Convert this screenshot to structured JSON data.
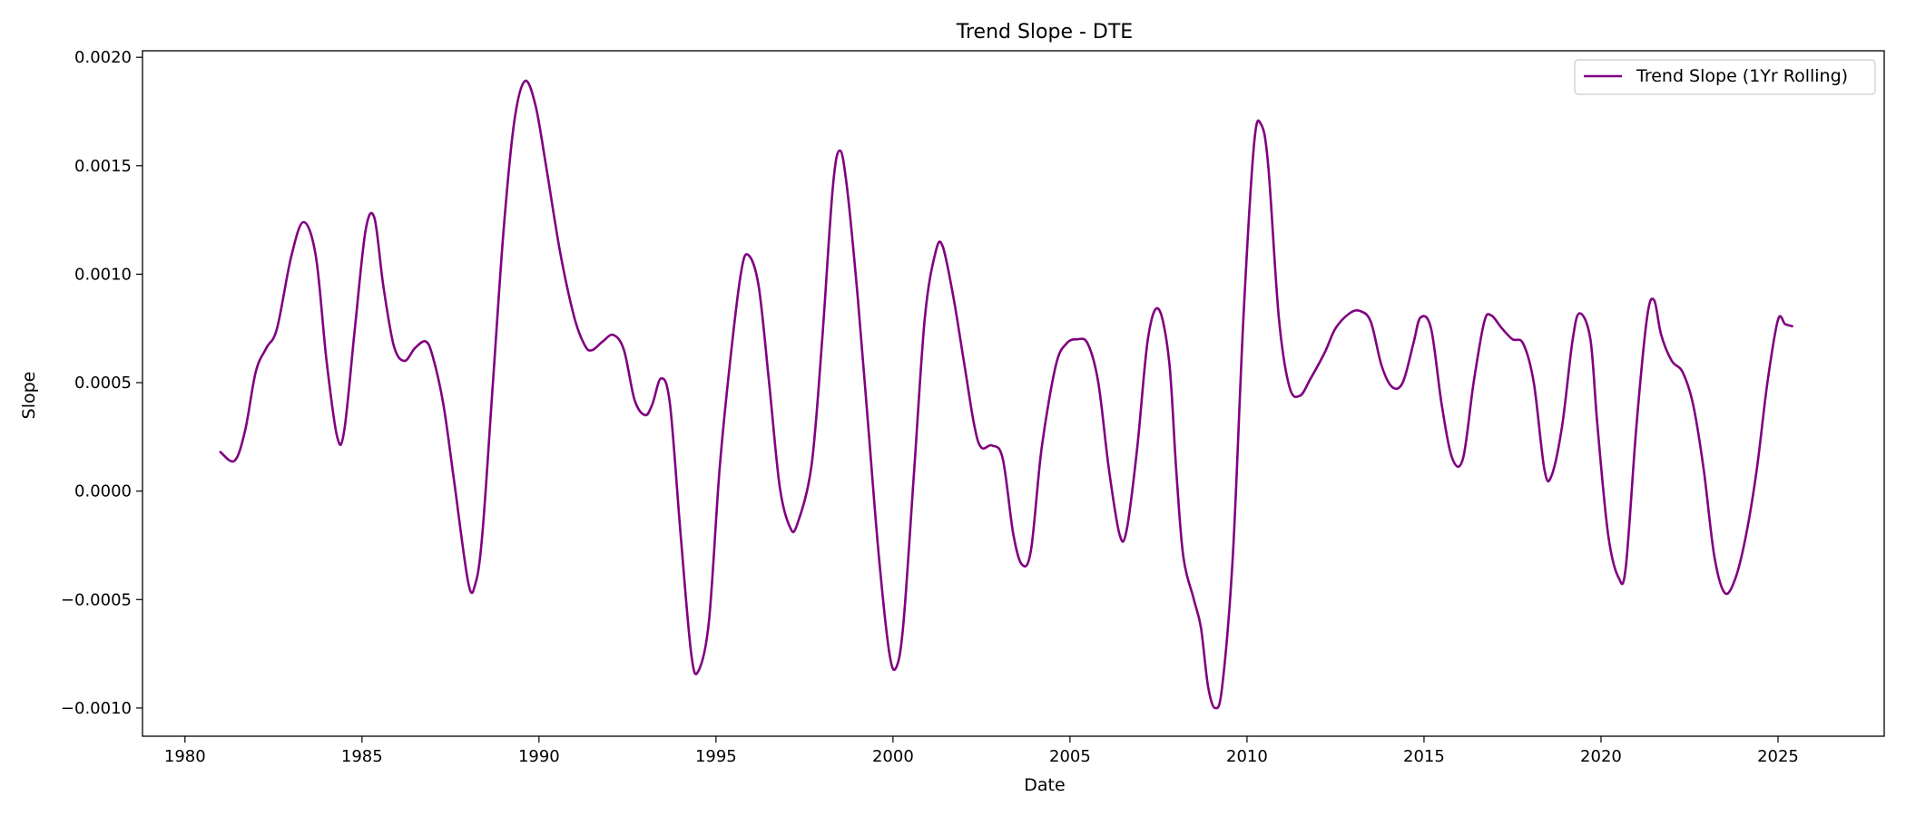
{
  "chart_data": {
    "type": "line",
    "title": "Trend Slope - DTE",
    "xlabel": "Date",
    "ylabel": "Slope",
    "xlim": [
      1978.8,
      2028.0
    ],
    "ylim": [
      -0.00113,
      0.00203
    ],
    "xticks": [
      1980,
      1985,
      1990,
      1995,
      2000,
      2005,
      2010,
      2015,
      2020,
      2025
    ],
    "yticks": [
      -0.001,
      -0.0005,
      0.0,
      0.0005,
      0.001,
      0.0015,
      0.002
    ],
    "ytick_labels": [
      "−0.0010",
      "−0.0005",
      "0.0000",
      "0.0005",
      "0.0010",
      "0.0015",
      "0.0020"
    ],
    "grid": false,
    "legend_position": "top-right",
    "series": [
      {
        "name": "Trend Slope (1Yr Rolling)",
        "color": "#800080",
        "points": [
          [
            1981.0,
            0.00018
          ],
          [
            1981.4,
            0.00014
          ],
          [
            1981.7,
            0.00028
          ],
          [
            1982.0,
            0.00055
          ],
          [
            1982.3,
            0.00066
          ],
          [
            1982.6,
            0.00075
          ],
          [
            1983.0,
            0.00108
          ],
          [
            1983.35,
            0.00124
          ],
          [
            1983.7,
            0.00108
          ],
          [
            1984.0,
            0.0006
          ],
          [
            1984.3,
            0.00025
          ],
          [
            1984.5,
            0.00028
          ],
          [
            1984.8,
            0.00075
          ],
          [
            1985.1,
            0.0012
          ],
          [
            1985.35,
            0.00126
          ],
          [
            1985.6,
            0.00095
          ],
          [
            1985.9,
            0.00067
          ],
          [
            1986.2,
            0.0006
          ],
          [
            1986.5,
            0.00066
          ],
          [
            1986.8,
            0.00069
          ],
          [
            1987.0,
            0.00062
          ],
          [
            1987.3,
            0.0004
          ],
          [
            1987.6,
            5e-05
          ],
          [
            1988.0,
            -0.00042
          ],
          [
            1988.2,
            -0.00043
          ],
          [
            1988.4,
            -0.0002
          ],
          [
            1988.7,
            0.0005
          ],
          [
            1989.0,
            0.0012
          ],
          [
            1989.3,
            0.0017
          ],
          [
            1989.6,
            0.00189
          ],
          [
            1989.9,
            0.00178
          ],
          [
            1990.2,
            0.0015
          ],
          [
            1990.6,
            0.0011
          ],
          [
            1991.0,
            0.0008
          ],
          [
            1991.3,
            0.00067
          ],
          [
            1991.5,
            0.00065
          ],
          [
            1991.8,
            0.00069
          ],
          [
            1992.1,
            0.00072
          ],
          [
            1992.4,
            0.00065
          ],
          [
            1992.7,
            0.00042
          ],
          [
            1993.0,
            0.00035
          ],
          [
            1993.2,
            0.0004
          ],
          [
            1993.45,
            0.00052
          ],
          [
            1993.7,
            0.0004
          ],
          [
            1994.0,
            -0.0002
          ],
          [
            1994.3,
            -0.00075
          ],
          [
            1994.5,
            -0.00083
          ],
          [
            1994.8,
            -0.0006
          ],
          [
            1995.1,
            0.0001
          ],
          [
            1995.4,
            0.0006
          ],
          [
            1995.7,
            0.001
          ],
          [
            1995.9,
            0.00109
          ],
          [
            1996.2,
            0.00095
          ],
          [
            1996.5,
            0.0005
          ],
          [
            1996.8,
            2e-05
          ],
          [
            1997.1,
            -0.00017
          ],
          [
            1997.3,
            -0.00015
          ],
          [
            1997.7,
            0.00012
          ],
          [
            1998.0,
            0.0007
          ],
          [
            1998.3,
            0.0014
          ],
          [
            1998.5,
            0.00157
          ],
          [
            1998.7,
            0.0014
          ],
          [
            1999.0,
            0.0009
          ],
          [
            1999.3,
            0.0003
          ],
          [
            1999.6,
            -0.0003
          ],
          [
            1999.9,
            -0.00075
          ],
          [
            2000.1,
            -0.00081
          ],
          [
            2000.3,
            -0.0006
          ],
          [
            2000.6,
            0.0001
          ],
          [
            2000.9,
            0.0008
          ],
          [
            2001.2,
            0.0011
          ],
          [
            2001.4,
            0.00113
          ],
          [
            2001.7,
            0.0009
          ],
          [
            2002.0,
            0.0006
          ],
          [
            2002.3,
            0.0003
          ],
          [
            2002.5,
            0.0002
          ],
          [
            2002.8,
            0.00021
          ],
          [
            2003.1,
            0.00015
          ],
          [
            2003.4,
            -0.0002
          ],
          [
            2003.65,
            -0.00034
          ],
          [
            2003.9,
            -0.00027
          ],
          [
            2004.2,
            0.0002
          ],
          [
            2004.6,
            0.00058
          ],
          [
            2004.9,
            0.00068
          ],
          [
            2005.2,
            0.0007
          ],
          [
            2005.5,
            0.00068
          ],
          [
            2005.8,
            0.0005
          ],
          [
            2006.1,
            0.0001
          ],
          [
            2006.4,
            -0.0002
          ],
          [
            2006.6,
            -0.00018
          ],
          [
            2006.9,
            0.0002
          ],
          [
            2007.2,
            0.0007
          ],
          [
            2007.5,
            0.00084
          ],
          [
            2007.8,
            0.0006
          ],
          [
            2008.0,
            0.0001
          ],
          [
            2008.2,
            -0.0003
          ],
          [
            2008.5,
            -0.0005
          ],
          [
            2008.7,
            -0.00063
          ],
          [
            2008.9,
            -0.0009
          ],
          [
            2009.1,
            -0.001
          ],
          [
            2009.3,
            -0.0009
          ],
          [
            2009.6,
            -0.0003
          ],
          [
            2009.9,
            0.0008
          ],
          [
            2010.2,
            0.0016
          ],
          [
            2010.4,
            0.00169
          ],
          [
            2010.6,
            0.0015
          ],
          [
            2010.9,
            0.0008
          ],
          [
            2011.2,
            0.00048
          ],
          [
            2011.5,
            0.00044
          ],
          [
            2011.8,
            0.00052
          ],
          [
            2012.2,
            0.00064
          ],
          [
            2012.5,
            0.00075
          ],
          [
            2012.9,
            0.00082
          ],
          [
            2013.2,
            0.00083
          ],
          [
            2013.5,
            0.00078
          ],
          [
            2013.8,
            0.00058
          ],
          [
            2014.1,
            0.00048
          ],
          [
            2014.4,
            0.0005
          ],
          [
            2014.7,
            0.00068
          ],
          [
            2014.9,
            0.0008
          ],
          [
            2015.2,
            0.00075
          ],
          [
            2015.5,
            0.0004
          ],
          [
            2015.8,
            0.00015
          ],
          [
            2016.1,
            0.00015
          ],
          [
            2016.4,
            0.0005
          ],
          [
            2016.7,
            0.00078
          ],
          [
            2016.9,
            0.00081
          ],
          [
            2017.2,
            0.00075
          ],
          [
            2017.5,
            0.0007
          ],
          [
            2017.8,
            0.00068
          ],
          [
            2018.1,
            0.0005
          ],
          [
            2018.4,
            0.0001
          ],
          [
            2018.6,
            7e-05
          ],
          [
            2018.9,
            0.0003
          ],
          [
            2019.2,
            0.0007
          ],
          [
            2019.4,
            0.00082
          ],
          [
            2019.7,
            0.0007
          ],
          [
            2019.9,
            0.0003
          ],
          [
            2020.2,
            -0.0002
          ],
          [
            2020.5,
            -0.0004
          ],
          [
            2020.7,
            -0.00035
          ],
          [
            2021.0,
            0.0003
          ],
          [
            2021.3,
            0.0008
          ],
          [
            2021.5,
            0.00088
          ],
          [
            2021.7,
            0.00072
          ],
          [
            2022.0,
            0.0006
          ],
          [
            2022.3,
            0.00055
          ],
          [
            2022.6,
            0.0004
          ],
          [
            2022.9,
            0.0001
          ],
          [
            2023.2,
            -0.0003
          ],
          [
            2023.5,
            -0.00047
          ],
          [
            2023.8,
            -0.0004
          ],
          [
            2024.1,
            -0.0002
          ],
          [
            2024.4,
            0.0001
          ],
          [
            2024.7,
            0.0005
          ],
          [
            2025.0,
            0.00079
          ],
          [
            2025.2,
            0.00077
          ],
          [
            2025.4,
            0.00076
          ]
        ]
      }
    ]
  }
}
